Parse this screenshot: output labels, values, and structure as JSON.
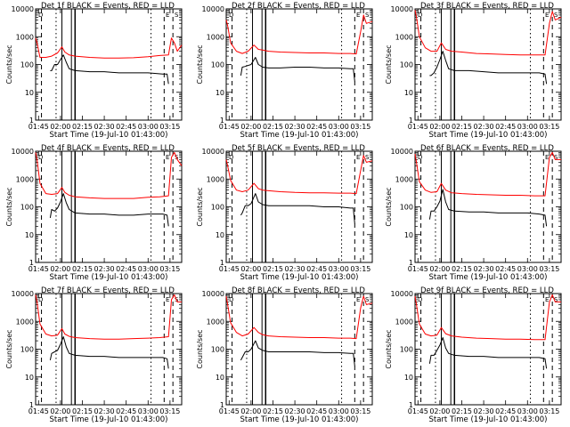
{
  "chart_data": [
    {
      "type": "line",
      "title": "Det 1f BLACK = Events, RED = LLD",
      "xlabel": "Start Time (19-Jul-10 01:43:00)",
      "ylabel": "Counts/sec",
      "x_tick_labels": [
        "01:45",
        "02:00",
        "02:15",
        "02:30",
        "02:45",
        "03:00",
        "03:15"
      ],
      "y_tick_labels": [
        "1",
        "10",
        "100",
        "1000",
        "10000"
      ],
      "xlim_minutes": [
        103,
        203
      ],
      "ylim": [
        1,
        10000
      ],
      "y_scale": "log",
      "markers": [
        "D",
        "E",
        "S"
      ],
      "series": [
        {
          "color": "#ff0000",
          "x": [
            103,
            104,
            106,
            110,
            114,
            118,
            121,
            123,
            126,
            130,
            140,
            150,
            160,
            170,
            180,
            188,
            194,
            196,
            198,
            200,
            203
          ],
          "y": [
            900,
            600,
            180,
            180,
            200,
            260,
            430,
            280,
            220,
            200,
            180,
            170,
            170,
            175,
            190,
            210,
            220,
            900,
            600,
            300,
            500
          ]
        },
        {
          "color": "#000000",
          "x": [
            113,
            114,
            116,
            118,
            120,
            122,
            124,
            126,
            130,
            140,
            150,
            160,
            170,
            180,
            190,
            193,
            194
          ],
          "y": [
            60,
            60,
            100,
            100,
            150,
            220,
            120,
            70,
            60,
            55,
            55,
            50,
            50,
            50,
            45,
            45,
            20
          ]
        }
      ]
    },
    {
      "type": "line",
      "title": "Det 2f BLACK = Events, RED = LLD",
      "xlabel": "Start Time (19-Jul-10 01:43:00)",
      "ylabel": "Counts/sec",
      "x_tick_labels": [
        "01:45",
        "02:00",
        "02:15",
        "02:30",
        "02:45",
        "03:00",
        "03:15"
      ],
      "y_tick_labels": [
        "1",
        "10",
        "100",
        "1000",
        "10000"
      ],
      "xlim_minutes": [
        103,
        203
      ],
      "ylim": [
        1,
        10000
      ],
      "y_scale": "log",
      "markers": [
        "D",
        "E",
        "S"
      ],
      "series": [
        {
          "color": "#ff0000",
          "x": [
            103,
            104,
            106,
            110,
            114,
            118,
            122,
            125,
            128,
            132,
            140,
            150,
            160,
            170,
            180,
            188,
            192,
            195,
            197,
            199,
            203
          ],
          "y": [
            4000,
            2500,
            600,
            300,
            250,
            300,
            500,
            350,
            330,
            300,
            280,
            270,
            260,
            260,
            250,
            250,
            240,
            1500,
            6000,
            3000,
            3500
          ]
        },
        {
          "color": "#000000",
          "x": [
            113,
            114,
            116,
            120,
            123,
            125,
            128,
            132,
            140,
            150,
            160,
            170,
            180,
            188,
            190,
            191
          ],
          "y": [
            40,
            80,
            85,
            100,
            180,
            100,
            80,
            75,
            75,
            80,
            80,
            75,
            75,
            70,
            70,
            25
          ]
        }
      ]
    },
    {
      "type": "line",
      "title": "Det 3f BLACK = Events, RED = LLD",
      "xlabel": "Start Time (19-Jul-10 01:43:00)",
      "ylabel": "Counts/sec",
      "x_tick_labels": [
        "01:45",
        "02:00",
        "02:15",
        "02:30",
        "02:45",
        "03:00",
        "03:15"
      ],
      "y_tick_labels": [
        "1",
        "10",
        "100",
        "1000",
        "10000"
      ],
      "xlim_minutes": [
        103,
        203
      ],
      "ylim": [
        1,
        10000
      ],
      "y_scale": "log",
      "markers": [
        "D",
        "E",
        "S"
      ],
      "series": [
        {
          "color": "#ff0000",
          "x": [
            103,
            104,
            106,
            110,
            114,
            118,
            121,
            124,
            128,
            135,
            145,
            155,
            165,
            175,
            185,
            192,
            195,
            197,
            199,
            203
          ],
          "y": [
            9000,
            5000,
            1000,
            400,
            300,
            300,
            600,
            350,
            300,
            280,
            250,
            240,
            230,
            220,
            220,
            220,
            3000,
            8000,
            4000,
            5000
          ]
        },
        {
          "color": "#000000",
          "x": [
            113,
            114,
            116,
            118,
            120,
            122,
            124,
            126,
            130,
            140,
            150,
            160,
            170,
            180,
            188,
            192,
            193
          ],
          "y": [
            40,
            40,
            50,
            80,
            150,
            300,
            140,
            70,
            60,
            60,
            55,
            50,
            50,
            50,
            50,
            45,
            20
          ]
        }
      ]
    },
    {
      "type": "line",
      "title": "Det 4f BLACK = Events, RED = LLD",
      "xlabel": "Start Time (19-Jul-10 01:43:00)",
      "ylabel": "Counts/sec",
      "x_tick_labels": [
        "01:45",
        "02:00",
        "02:15",
        "02:30",
        "02:45",
        "03:00",
        "03:15"
      ],
      "y_tick_labels": [
        "1",
        "10",
        "100",
        "1000",
        "10000"
      ],
      "xlim_minutes": [
        103,
        203
      ],
      "ylim": [
        1,
        10000
      ],
      "y_scale": "log",
      "markers": [
        "D",
        "E",
        "S"
      ],
      "series": [
        {
          "color": "#ff0000",
          "x": [
            103,
            104,
            106,
            110,
            114,
            118,
            121,
            123,
            126,
            130,
            140,
            150,
            160,
            170,
            180,
            188,
            194,
            196,
            198,
            200,
            203
          ],
          "y": [
            9000,
            5000,
            700,
            300,
            280,
            300,
            500,
            330,
            260,
            230,
            210,
            200,
            200,
            200,
            220,
            230,
            250,
            6000,
            9000,
            5000,
            3000
          ]
        },
        {
          "color": "#000000",
          "x": [
            113,
            114,
            116,
            118,
            120,
            122,
            124,
            126,
            130,
            140,
            150,
            160,
            170,
            180,
            190,
            193,
            194
          ],
          "y": [
            40,
            80,
            70,
            90,
            150,
            300,
            140,
            80,
            60,
            55,
            55,
            50,
            50,
            55,
            55,
            50,
            20
          ]
        }
      ]
    },
    {
      "type": "line",
      "title": "Det 5f BLACK = Events, RED = LLD",
      "xlabel": "Start Time (19-Jul-10 01:43:00)",
      "ylabel": "Counts/sec",
      "x_tick_labels": [
        "01:45",
        "02:00",
        "02:15",
        "02:30",
        "02:45",
        "03:00",
        "03:15"
      ],
      "y_tick_labels": [
        "1",
        "10",
        "100",
        "1000",
        "10000"
      ],
      "xlim_minutes": [
        103,
        203
      ],
      "ylim": [
        1,
        10000
      ],
      "y_scale": "log",
      "markers": [
        "D",
        "E",
        "S"
      ],
      "series": [
        {
          "color": "#ff0000",
          "x": [
            103,
            104,
            106,
            110,
            114,
            118,
            122,
            125,
            128,
            132,
            140,
            150,
            160,
            170,
            180,
            188,
            192,
            195,
            197,
            199,
            203
          ],
          "y": [
            5000,
            3000,
            900,
            400,
            350,
            400,
            700,
            450,
            400,
            380,
            350,
            330,
            320,
            320,
            310,
            310,
            300,
            2000,
            7000,
            4000,
            4500
          ]
        },
        {
          "color": "#000000",
          "x": [
            113,
            114,
            116,
            118,
            120,
            123,
            125,
            128,
            132,
            140,
            150,
            160,
            170,
            180,
            188,
            190,
            191
          ],
          "y": [
            50,
            60,
            110,
            110,
            130,
            300,
            150,
            120,
            110,
            110,
            110,
            110,
            100,
            100,
            90,
            90,
            25
          ]
        }
      ]
    },
    {
      "type": "line",
      "title": "Det 6f BLACK = Events, RED = LLD",
      "xlabel": "Start Time (19-Jul-10 01:43:00)",
      "ylabel": "Counts/sec",
      "x_tick_labels": [
        "01:45",
        "02:00",
        "02:15",
        "02:30",
        "02:45",
        "03:00",
        "03:15"
      ],
      "y_tick_labels": [
        "1",
        "10",
        "100",
        "1000",
        "10000"
      ],
      "xlim_minutes": [
        103,
        203
      ],
      "ylim": [
        1,
        10000
      ],
      "y_scale": "log",
      "markers": [
        "D",
        "E",
        "S"
      ],
      "series": [
        {
          "color": "#ff0000",
          "x": [
            103,
            104,
            106,
            110,
            114,
            118,
            121,
            124,
            128,
            135,
            145,
            155,
            165,
            175,
            185,
            192,
            195,
            197,
            199,
            203
          ],
          "y": [
            8000,
            4000,
            800,
            400,
            330,
            350,
            700,
            400,
            320,
            300,
            280,
            270,
            260,
            260,
            250,
            250,
            6000,
            9000,
            5000,
            5000
          ]
        },
        {
          "color": "#000000",
          "x": [
            113,
            114,
            116,
            118,
            120,
            122,
            124,
            126,
            130,
            140,
            150,
            160,
            170,
            180,
            188,
            192,
            193
          ],
          "y": [
            35,
            70,
            70,
            100,
            160,
            420,
            150,
            80,
            70,
            65,
            65,
            60,
            60,
            60,
            55,
            50,
            20
          ]
        }
      ]
    },
    {
      "type": "line",
      "title": "Det 7f BLACK = Events, RED = LLD",
      "xlabel": "Start Time (19-Jul-10 01:43:00)",
      "ylabel": "Counts/sec",
      "x_tick_labels": [
        "01:45",
        "02:00",
        "02:15",
        "02:30",
        "02:45",
        "03:00",
        "03:15"
      ],
      "y_tick_labels": [
        "1",
        "10",
        "100",
        "1000",
        "10000"
      ],
      "xlim_minutes": [
        103,
        203
      ],
      "ylim": [
        1,
        10000
      ],
      "y_scale": "log",
      "markers": [
        "D",
        "E",
        "S"
      ],
      "series": [
        {
          "color": "#ff0000",
          "x": [
            103,
            104,
            106,
            110,
            114,
            118,
            121,
            123,
            126,
            130,
            140,
            150,
            160,
            170,
            180,
            188,
            194,
            196,
            198,
            200,
            203
          ],
          "y": [
            9000,
            5000,
            800,
            350,
            300,
            320,
            550,
            350,
            290,
            260,
            240,
            230,
            230,
            240,
            250,
            260,
            280,
            6000,
            9000,
            5000,
            5000
          ]
        },
        {
          "color": "#000000",
          "x": [
            113,
            114,
            116,
            118,
            120,
            122,
            124,
            126,
            130,
            140,
            150,
            160,
            170,
            180,
            190,
            193,
            194
          ],
          "y": [
            40,
            70,
            80,
            90,
            150,
            280,
            120,
            70,
            60,
            55,
            55,
            50,
            50,
            50,
            50,
            45,
            20
          ]
        }
      ]
    },
    {
      "type": "line",
      "title": "Det 8f BLACK = Events, RED = LLD",
      "xlabel": "Start Time (19-Jul-10 01:43:00)",
      "ylabel": "Counts/sec",
      "x_tick_labels": [
        "01:45",
        "02:00",
        "02:15",
        "02:30",
        "02:45",
        "03:00",
        "03:15"
      ],
      "y_tick_labels": [
        "1",
        "10",
        "100",
        "1000",
        "10000"
      ],
      "xlim_minutes": [
        103,
        203
      ],
      "ylim": [
        1,
        10000
      ],
      "y_scale": "log",
      "markers": [
        "D",
        "E",
        "S"
      ],
      "series": [
        {
          "color": "#ff0000",
          "x": [
            103,
            104,
            106,
            110,
            114,
            118,
            122,
            125,
            128,
            132,
            140,
            150,
            160,
            170,
            180,
            188,
            192,
            195,
            197,
            199,
            203
          ],
          "y": [
            8000,
            4000,
            900,
            400,
            300,
            350,
            600,
            400,
            330,
            300,
            280,
            270,
            260,
            260,
            250,
            250,
            240,
            3000,
            8000,
            4000,
            4500
          ]
        },
        {
          "color": "#000000",
          "x": [
            113,
            114,
            116,
            118,
            120,
            123,
            125,
            128,
            132,
            140,
            150,
            160,
            170,
            180,
            188,
            190,
            191
          ],
          "y": [
            40,
            50,
            80,
            80,
            100,
            200,
            110,
            90,
            80,
            80,
            80,
            80,
            75,
            75,
            70,
            70,
            25
          ]
        }
      ]
    },
    {
      "type": "line",
      "title": "Det 9f BLACK = Events, RED = LLD",
      "xlabel": "Start Time (19-Jul-10 01:43:00)",
      "ylabel": "Counts/sec",
      "x_tick_labels": [
        "01:45",
        "02:00",
        "02:15",
        "02:30",
        "02:45",
        "03:00",
        "03:15"
      ],
      "y_tick_labels": [
        "1",
        "10",
        "100",
        "1000",
        "10000"
      ],
      "xlim_minutes": [
        103,
        203
      ],
      "ylim": [
        1,
        10000
      ],
      "y_scale": "log",
      "markers": [
        "D",
        "E",
        "S"
      ],
      "series": [
        {
          "color": "#ff0000",
          "x": [
            103,
            104,
            106,
            110,
            114,
            118,
            121,
            124,
            128,
            135,
            145,
            155,
            165,
            175,
            185,
            192,
            195,
            197,
            199,
            203
          ],
          "y": [
            8000,
            4000,
            800,
            350,
            300,
            320,
            600,
            360,
            300,
            270,
            250,
            240,
            230,
            230,
            220,
            220,
            5000,
            9000,
            5000,
            5000
          ]
        },
        {
          "color": "#000000",
          "x": [
            113,
            114,
            116,
            118,
            120,
            122,
            124,
            126,
            130,
            140,
            150,
            160,
            170,
            180,
            188,
            192,
            193
          ],
          "y": [
            30,
            60,
            60,
            90,
            140,
            260,
            110,
            70,
            60,
            55,
            55,
            50,
            50,
            50,
            50,
            45,
            20
          ]
        }
      ]
    }
  ]
}
